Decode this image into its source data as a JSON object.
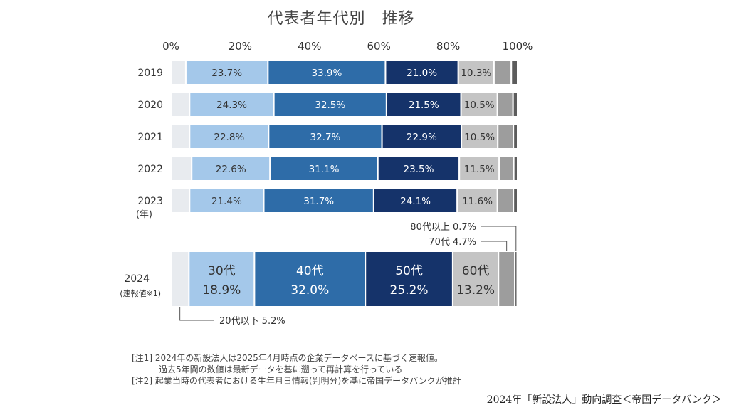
{
  "chart_data": {
    "type": "bar",
    "orientation": "horizontal",
    "stacked": true,
    "title": "代表者年代別　推移",
    "x_ticks": [
      "0%",
      "20%",
      "40%",
      "60%",
      "80%",
      "100%"
    ],
    "xlim": [
      0,
      100
    ],
    "year_unit_label": "(年)",
    "categories": [
      "2019",
      "2020",
      "2021",
      "2022",
      "2023",
      "2024"
    ],
    "category_sublabels": [
      "",
      "",
      "",
      "",
      "",
      "(速報値※1)"
    ],
    "series": [
      {
        "name": "20代以下",
        "color": "#e8ebef",
        "values": [
          4.3,
          5.4,
          5.4,
          6.0,
          5.4,
          5.2
        ],
        "labels": [
          "",
          "",
          "",
          "",
          "",
          ""
        ]
      },
      {
        "name": "30代",
        "color": "#a4c8ea",
        "values": [
          23.7,
          24.3,
          22.8,
          22.6,
          21.4,
          18.9
        ],
        "labels": [
          "23.7%",
          "24.3%",
          "22.8%",
          "22.6%",
          "21.4%",
          "18.9%"
        ]
      },
      {
        "name": "40代",
        "color": "#2e6ca8",
        "values": [
          33.9,
          32.5,
          32.7,
          31.1,
          31.7,
          32.0
        ],
        "labels": [
          "33.9%",
          "32.5%",
          "32.7%",
          "31.1%",
          "31.7%",
          "32.0%"
        ]
      },
      {
        "name": "50代",
        "color": "#15336a",
        "values": [
          21.0,
          21.5,
          22.9,
          23.5,
          24.1,
          25.2
        ],
        "labels": [
          "21.0%",
          "21.5%",
          "22.9%",
          "23.5%",
          "24.1%",
          "25.2%"
        ]
      },
      {
        "name": "60代",
        "color": "#c4c4c4",
        "values": [
          10.3,
          10.5,
          10.5,
          11.5,
          11.6,
          13.2
        ],
        "labels": [
          "10.3%",
          "10.5%",
          "10.5%",
          "11.5%",
          "11.6%",
          "13.2%"
        ]
      },
      {
        "name": "70代",
        "color": "#9d9d9d",
        "values": [
          5.0,
          4.5,
          4.5,
          4.2,
          4.6,
          4.7
        ],
        "labels": [
          "",
          "",
          "",
          "",
          "",
          ""
        ]
      },
      {
        "name": "80代以上",
        "color": "#5c5c5c",
        "values": [
          1.8,
          1.3,
          1.2,
          1.1,
          1.2,
          0.7
        ],
        "labels": [
          "",
          "",
          "",
          "",
          "",
          ""
        ]
      }
    ],
    "highlight_2024_labels": {
      "30代": [
        "30代",
        "18.9%"
      ],
      "40代": [
        "40代",
        "32.0%"
      ],
      "50代": [
        "50代",
        "25.2%"
      ],
      "60代": [
        "60代",
        "13.2%"
      ]
    },
    "callouts": {
      "age80": "80代以上 0.7%",
      "age70": "70代 4.7%",
      "age20": "20代以下 5.2%"
    }
  },
  "notes": {
    "line1": "[注1] 2024年の新設法人は2025年4月時点の企業データベースに基づく速報値。",
    "line2": "過去5年間の数値は最新データを基に遡って再計算を行っている",
    "line3": "[注2] 起業当時の代表者における生年月日情報(判明分)を基に帝国データバンクが推計"
  },
  "source": "2024年「新設法人」動向調査＜帝国データバンク＞"
}
